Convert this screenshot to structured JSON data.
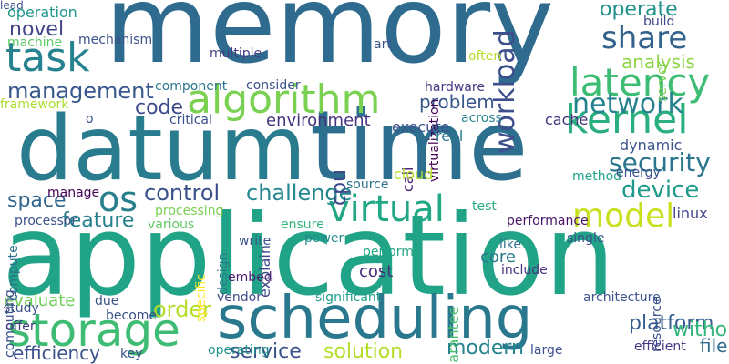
{
  "words": [
    {
      "text": "memory",
      "color": "#2e6b8e",
      "vertical": false
    },
    {
      "text": "datum",
      "color": "#287c8e",
      "vertical": false
    },
    {
      "text": "time",
      "color": "#2d6f8e",
      "vertical": false
    },
    {
      "text": "application",
      "color": "#20a386",
      "vertical": false
    },
    {
      "text": "scheduling",
      "color": "#2a788e",
      "vertical": false
    },
    {
      "text": "algorithm",
      "color": "#7ad151",
      "vertical": false
    },
    {
      "text": "storage",
      "color": "#3fbc73",
      "vertical": false
    },
    {
      "text": "latency",
      "color": "#3dbc74",
      "vertical": false
    },
    {
      "text": "kernel",
      "color": "#2ab07f",
      "vertical": false
    },
    {
      "text": "task",
      "color": "#26828e",
      "vertical": false
    },
    {
      "text": "share",
      "color": "#33638d",
      "vertical": false
    },
    {
      "text": "virtual",
      "color": "#22a884",
      "vertical": false
    },
    {
      "text": "model",
      "color": "#c8e020",
      "vertical": false
    },
    {
      "text": "os",
      "color": "#277f8e",
      "vertical": false
    },
    {
      "text": "security",
      "color": "#2a768e",
      "vertical": false
    },
    {
      "text": "network",
      "color": "#26828e",
      "vertical": false
    },
    {
      "text": "management",
      "color": "#38598c",
      "vertical": false
    },
    {
      "text": "control",
      "color": "#3b518b",
      "vertical": false
    },
    {
      "text": "operate",
      "color": "#21918c",
      "vertical": false
    },
    {
      "text": "workload",
      "color": "#3d4e8a",
      "vertical": true
    },
    {
      "text": "device",
      "color": "#1f9a8a",
      "vertical": false
    },
    {
      "text": "challenge",
      "color": "#24878e",
      "vertical": false
    },
    {
      "text": "analysis",
      "color": "#8ed645",
      "vertical": false
    },
    {
      "text": "platform",
      "color": "#355f8d",
      "vertical": false
    },
    {
      "text": "order",
      "color": "#b5de2b",
      "vertical": false
    },
    {
      "text": "modern",
      "color": "#25848e",
      "vertical": false
    },
    {
      "text": "service",
      "color": "#3b518b",
      "vertical": false
    },
    {
      "text": "solution",
      "color": "#b5de2b",
      "vertical": false
    },
    {
      "text": "file",
      "color": "#2f6c8e",
      "vertical": false
    },
    {
      "text": "novel",
      "color": "#404588",
      "vertical": false
    },
    {
      "text": "feature",
      "color": "#27808e",
      "vertical": false
    },
    {
      "text": "space",
      "color": "#31668e",
      "vertical": false
    },
    {
      "text": "code",
      "color": "#3e4a89",
      "vertical": false
    },
    {
      "text": "problem",
      "color": "#38588c",
      "vertical": false
    },
    {
      "text": "without",
      "color": "#32b67a",
      "vertical": false
    },
    {
      "text": "cpu",
      "color": "#3f4889",
      "vertical": true
    },
    {
      "text": "efficiency",
      "color": "#3b528b",
      "vertical": false
    },
    {
      "text": "environment",
      "color": "#46337e",
      "vertical": false
    },
    {
      "text": "core",
      "color": "#29798e",
      "vertical": false
    },
    {
      "text": "cost",
      "color": "#472c7a",
      "vertical": false
    },
    {
      "text": "evaluate",
      "color": "#6ece58",
      "vertical": false
    },
    {
      "text": "dynamic",
      "color": "#3b528b",
      "vertical": false
    },
    {
      "text": "linux",
      "color": "#404688",
      "vertical": false
    },
    {
      "text": "operation",
      "color": "#1f968b",
      "vertical": false
    },
    {
      "text": "build",
      "color": "#3f4889",
      "vertical": false
    },
    {
      "text": "hardware",
      "color": "#443983",
      "vertical": false
    },
    {
      "text": "multiple",
      "color": "#433e85",
      "vertical": false
    },
    {
      "text": "explain",
      "color": "#3e4989",
      "vertical": true
    },
    {
      "text": "specific",
      "color": "#fde725",
      "vertical": true
    },
    {
      "text": "guarantee",
      "color": "#4ac16d",
      "vertical": true
    },
    {
      "text": "resource",
      "color": "#3b528b",
      "vertical": true
    },
    {
      "text": "virtualization",
      "color": "#440154",
      "vertical": true
    },
    {
      "text": "compute",
      "color": "#2c718e",
      "vertical": true
    },
    {
      "text": "computing",
      "color": "#3b528b",
      "vertical": true
    },
    {
      "text": "server",
      "color": "#7ad151",
      "vertical": true
    },
    {
      "text": "design",
      "color": "#297a8e",
      "vertical": true
    },
    {
      "text": "call",
      "color": "#482173",
      "vertical": true
    },
    {
      "text": "cloud",
      "color": "#b5de2b",
      "vertical": false
    },
    {
      "text": "execute",
      "color": "#3b528b",
      "vertical": false
    },
    {
      "text": "real",
      "color": "#2a788e",
      "vertical": false
    },
    {
      "text": "across",
      "color": "#26828e",
      "vertical": false
    },
    {
      "text": "cache",
      "color": "#46327e",
      "vertical": false
    },
    {
      "text": "method",
      "color": "#20a486",
      "vertical": false
    },
    {
      "text": "energy",
      "color": "#3b528b",
      "vertical": false
    },
    {
      "text": "source",
      "color": "#2c718e",
      "vertical": false
    },
    {
      "text": "test",
      "color": "#23a983",
      "vertical": false
    },
    {
      "text": "performance",
      "color": "#471365",
      "vertical": false
    },
    {
      "text": "single",
      "color": "#3b528b",
      "vertical": false
    },
    {
      "text": "like",
      "color": "#2d708e",
      "vertical": false
    },
    {
      "text": "include",
      "color": "#472d7b",
      "vertical": false
    },
    {
      "text": "perform",
      "color": "#21a585",
      "vertical": false
    },
    {
      "text": "ensure",
      "color": "#31b57b",
      "vertical": false
    },
    {
      "text": "power",
      "color": "#238a8d",
      "vertical": false
    },
    {
      "text": "embed",
      "color": "#481f70",
      "vertical": false
    },
    {
      "text": "vendor",
      "color": "#3e4a89",
      "vertical": false
    },
    {
      "text": "significant",
      "color": "#1f9e89",
      "vertical": false
    },
    {
      "text": "architecture",
      "color": "#3b528b",
      "vertical": false
    },
    {
      "text": "efficient",
      "color": "#443a83",
      "vertical": false
    },
    {
      "text": "large",
      "color": "#3b528b",
      "vertical": false
    },
    {
      "text": "operating",
      "color": "#21918c",
      "vertical": false
    },
    {
      "text": "key",
      "color": "#3b528b",
      "vertical": false
    },
    {
      "text": "become",
      "color": "#3b528b",
      "vertical": false
    },
    {
      "text": "offer",
      "color": "#443983",
      "vertical": false
    },
    {
      "text": "due",
      "color": "#3b528b",
      "vertical": false
    },
    {
      "text": "study",
      "color": "#3b528b",
      "vertical": false
    },
    {
      "text": "processor",
      "color": "#3b528b",
      "vertical": false
    },
    {
      "text": "manage",
      "color": "#440154",
      "vertical": false
    },
    {
      "text": "various",
      "color": "#5ec962",
      "vertical": false
    },
    {
      "text": "processing",
      "color": "#7ad151",
      "vertical": false
    },
    {
      "text": "write",
      "color": "#3b528b",
      "vertical": false
    },
    {
      "text": "o",
      "color": "#3b528b",
      "vertical": false
    },
    {
      "text": "critical",
      "color": "#3b528b",
      "vertical": false
    },
    {
      "text": "component",
      "color": "#2a788e",
      "vertical": false
    },
    {
      "text": "consider",
      "color": "#3b528b",
      "vertical": false
    },
    {
      "text": "framework",
      "color": "#addc30",
      "vertical": false
    },
    {
      "text": "machine",
      "color": "#5ec962",
      "vertical": false
    },
    {
      "text": "mechanism",
      "color": "#3b528b",
      "vertical": false
    },
    {
      "text": "art",
      "color": "#3b528b",
      "vertical": false
    },
    {
      "text": "often",
      "color": "#b5de2b",
      "vertical": false
    },
    {
      "text": "lead",
      "color": "#3b528b",
      "vertical": false
    }
  ]
}
